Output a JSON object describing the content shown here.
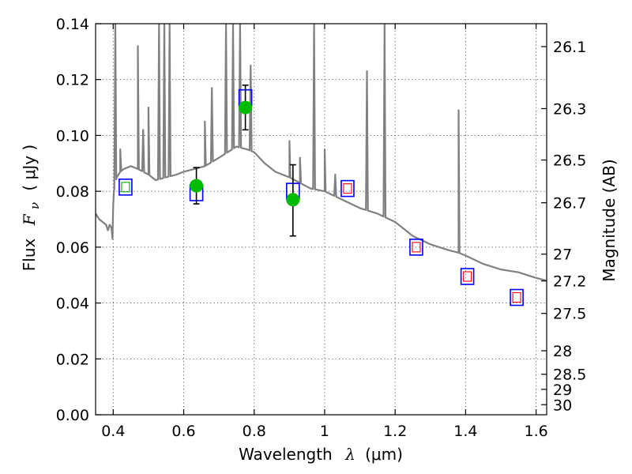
{
  "chart_data": {
    "type": "scatter",
    "title": "",
    "xlabel_prefix": "Wavelength",
    "xlabel_symbol": "λ",
    "xlabel_unit": "(μm)",
    "ylabel_prefix": "Flux",
    "ylabel_symbol": "F",
    "ylabel_subscript": "ν",
    "ylabel_unit": "( μJy )",
    "y2label": "Magnitude (AB)",
    "xlim": [
      0.35,
      1.63
    ],
    "ylim": [
      0.0,
      0.14
    ],
    "grid": true,
    "x_ticks": [
      0.4,
      0.6,
      0.8,
      1.0,
      1.2,
      1.4,
      1.6
    ],
    "x_tick_labels": [
      "0.4",
      "0.6",
      "0.8",
      "1",
      "1.2",
      "1.4",
      "1.6"
    ],
    "y_ticks": [
      0.0,
      0.02,
      0.04,
      0.06,
      0.08,
      0.1,
      0.12,
      0.14
    ],
    "y_tick_labels": [
      "0.00",
      "0.02",
      "0.04",
      "0.06",
      "0.08",
      "0.10",
      "0.12",
      "0.14"
    ],
    "y2_ticks": [
      {
        "label": "26.1",
        "flux": 0.1318
      },
      {
        "label": "26.3",
        "flux": 0.1096
      },
      {
        "label": "26.5",
        "flux": 0.0912
      },
      {
        "label": "26.7",
        "flux": 0.0759
      },
      {
        "label": "27",
        "flux": 0.0575
      },
      {
        "label": "27.2",
        "flux": 0.0479
      },
      {
        "label": "27.5",
        "flux": 0.0363
      },
      {
        "label": "28",
        "flux": 0.0229
      },
      {
        "label": "28.5",
        "flux": 0.0145
      },
      {
        "label": "29",
        "flux": 0.0091
      },
      {
        "label": "30",
        "flux": 0.0036
      }
    ],
    "series": [
      {
        "kind": "model_spectrum",
        "color": "#808080",
        "x": [
          0.35,
          0.36,
          0.37,
          0.38,
          0.385,
          0.39,
          0.395,
          0.398,
          0.4,
          0.402,
          0.405,
          0.41,
          0.42,
          0.43,
          0.45,
          0.47,
          0.5,
          0.52,
          0.55,
          0.58,
          0.6,
          0.63,
          0.66,
          0.7,
          0.75,
          0.78,
          0.8,
          0.83,
          0.86,
          0.9,
          0.93,
          0.96,
          1.0,
          1.05,
          1.1,
          1.15,
          1.2,
          1.25,
          1.3,
          1.35,
          1.38,
          1.4,
          1.45,
          1.5,
          1.55,
          1.6,
          1.63
        ],
        "y": [
          0.072,
          0.07,
          0.069,
          0.068,
          0.066,
          0.068,
          0.067,
          0.063,
          0.075,
          0.08,
          0.082,
          0.085,
          0.087,
          0.088,
          0.089,
          0.088,
          0.086,
          0.084,
          0.085,
          0.086,
          0.087,
          0.088,
          0.089,
          0.092,
          0.096,
          0.095,
          0.094,
          0.09,
          0.087,
          0.085,
          0.083,
          0.081,
          0.08,
          0.077,
          0.074,
          0.072,
          0.069,
          0.064,
          0.061,
          0.059,
          0.058,
          0.057,
          0.054,
          0.052,
          0.051,
          0.049,
          0.048
        ]
      },
      {
        "kind": "emission_lines",
        "color": "#808080",
        "peaks": [
          {
            "x": 0.406,
            "y": 0.14
          },
          {
            "x": 0.42,
            "y": 0.095
          },
          {
            "x": 0.47,
            "y": 0.132
          },
          {
            "x": 0.485,
            "y": 0.102
          },
          {
            "x": 0.5,
            "y": 0.11
          },
          {
            "x": 0.53,
            "y": 0.14
          },
          {
            "x": 0.545,
            "y": 0.14
          },
          {
            "x": 0.56,
            "y": 0.14
          },
          {
            "x": 0.66,
            "y": 0.105
          },
          {
            "x": 0.68,
            "y": 0.117
          },
          {
            "x": 0.72,
            "y": 0.14
          },
          {
            "x": 0.74,
            "y": 0.14
          },
          {
            "x": 0.76,
            "y": 0.14
          },
          {
            "x": 0.79,
            "y": 0.125
          },
          {
            "x": 0.9,
            "y": 0.098
          },
          {
            "x": 0.93,
            "y": 0.092
          },
          {
            "x": 0.97,
            "y": 0.14
          },
          {
            "x": 1.0,
            "y": 0.095
          },
          {
            "x": 1.03,
            "y": 0.086
          },
          {
            "x": 1.12,
            "y": 0.123
          },
          {
            "x": 1.17,
            "y": 0.14
          },
          {
            "x": 1.38,
            "y": 0.109
          }
        ]
      },
      {
        "kind": "observed_photometry",
        "marker": "circle",
        "color": "#00bb00",
        "x": [
          0.636,
          0.775,
          0.91
        ],
        "y": [
          0.082,
          0.11,
          0.077
        ],
        "yerr_low": [
          0.0755,
          0.102,
          0.064
        ],
        "yerr_high": [
          0.0885,
          0.118,
          0.0895
        ]
      },
      {
        "kind": "model_photometry",
        "marker": "square",
        "color": "#0000ff",
        "x": [
          0.435,
          0.636,
          0.775,
          0.91,
          1.065,
          1.26,
          1.405,
          1.545
        ],
        "y": [
          0.0815,
          0.0795,
          0.1135,
          0.08,
          0.081,
          0.06,
          0.0495,
          0.042
        ]
      },
      {
        "kind": "filter_markers",
        "marker": "small_square",
        "x": [
          0.435,
          1.065,
          1.26,
          1.405,
          1.545
        ],
        "y": [
          0.0815,
          0.081,
          0.06,
          0.0495,
          0.042
        ],
        "colors": [
          "#00aa00",
          "#ff0000",
          "#ff0000",
          "#ff0000",
          "#ff0000"
        ]
      }
    ]
  }
}
